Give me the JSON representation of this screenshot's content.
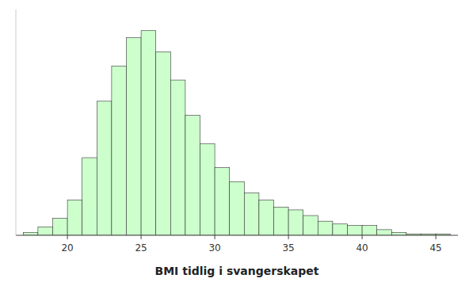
{
  "chart_data": {
    "type": "histogram",
    "xlabel": "BMI tidlig i svangerskapet",
    "color": "#ccffcc",
    "bins": [
      17,
      18,
      19,
      20,
      21,
      22,
      23,
      24,
      25,
      26,
      27,
      28,
      29,
      30,
      31,
      32,
      33,
      34,
      35,
      36,
      37,
      38,
      39,
      40,
      41,
      42,
      43,
      44,
      45,
      46
    ],
    "values": [
      2,
      6,
      12,
      25,
      55,
      95,
      120,
      140,
      145,
      130,
      110,
      85,
      65,
      48,
      38,
      30,
      25,
      20,
      18,
      14,
      10,
      8,
      7,
      7,
      4,
      2,
      1,
      1,
      1
    ],
    "xlim": [
      16.5,
      46.5
    ],
    "ylim": [
      0,
      160
    ],
    "xticks": [
      20,
      25,
      30,
      35,
      40,
      45
    ],
    "tick_labels": "x"
  }
}
